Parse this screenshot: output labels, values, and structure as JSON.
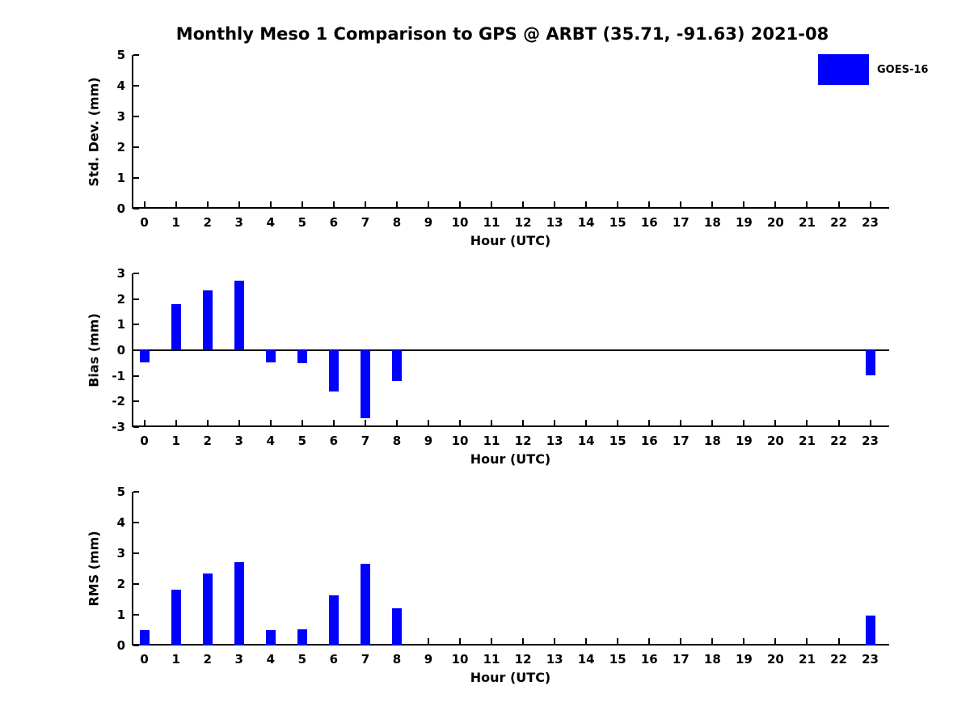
{
  "header": {
    "title": "Monthly Meso 1 Comparison to GPS @ ARBT (35.71, -91.63) 2021-08"
  },
  "legend": {
    "label": "GOES-16",
    "color": "#0000ff",
    "position": "top-right"
  },
  "chart_data": [
    {
      "type": "bar",
      "name": "std-dev-subplot",
      "ylabel": "Std. Dev. (mm)",
      "xlabel": "Hour (UTC)",
      "x": [
        0,
        1,
        2,
        3,
        4,
        5,
        6,
        7,
        8,
        9,
        10,
        11,
        12,
        13,
        14,
        15,
        16,
        17,
        18,
        19,
        20,
        21,
        22,
        23
      ],
      "xtick_labels": [
        "0",
        "1",
        "2",
        "3",
        "4",
        "5",
        "6",
        "7",
        "8",
        "9",
        "10",
        "11",
        "12",
        "13",
        "14",
        "15",
        "16",
        "17",
        "18",
        "19",
        "20",
        "21",
        "22",
        "23"
      ],
      "ylim": [
        0,
        5
      ],
      "yticks": [
        0,
        1,
        2,
        3,
        4,
        5
      ],
      "ytick_labels": [
        "0",
        "1",
        "2",
        "3",
        "4",
        "5"
      ],
      "zero_line": false,
      "grid": false,
      "series": [
        {
          "name": "GOES-16",
          "color": "#0000ff",
          "values": [
            null,
            null,
            null,
            null,
            null,
            null,
            null,
            null,
            null,
            null,
            null,
            null,
            null,
            null,
            null,
            null,
            null,
            null,
            null,
            null,
            null,
            null,
            null,
            null
          ]
        }
      ]
    },
    {
      "type": "bar",
      "name": "bias-subplot",
      "ylabel": "Bias (mm)",
      "xlabel": "Hour (UTC)",
      "x": [
        0,
        1,
        2,
        3,
        4,
        5,
        6,
        7,
        8,
        9,
        10,
        11,
        12,
        13,
        14,
        15,
        16,
        17,
        18,
        19,
        20,
        21,
        22,
        23
      ],
      "xtick_labels": [
        "0",
        "1",
        "2",
        "3",
        "4",
        "5",
        "6",
        "7",
        "8",
        "9",
        "10",
        "11",
        "12",
        "13",
        "14",
        "15",
        "16",
        "17",
        "18",
        "19",
        "20",
        "21",
        "22",
        "23"
      ],
      "ylim": [
        -3,
        3
      ],
      "yticks": [
        -3,
        -2,
        -1,
        0,
        1,
        2,
        3
      ],
      "ytick_labels": [
        "-3",
        "-2",
        "-1",
        "0",
        "1",
        "2",
        "3"
      ],
      "zero_line": true,
      "grid": false,
      "series": [
        {
          "name": "GOES-16",
          "color": "#0000ff",
          "values": [
            -0.48,
            1.81,
            2.35,
            2.72,
            -0.48,
            -0.52,
            -1.62,
            -2.66,
            -1.21,
            null,
            null,
            null,
            null,
            null,
            null,
            null,
            null,
            null,
            null,
            null,
            null,
            null,
            null,
            -0.99
          ]
        }
      ]
    },
    {
      "type": "bar",
      "name": "rms-subplot",
      "ylabel": "RMS (mm)",
      "xlabel": "Hour (UTC)",
      "x": [
        0,
        1,
        2,
        3,
        4,
        5,
        6,
        7,
        8,
        9,
        10,
        11,
        12,
        13,
        14,
        15,
        16,
        17,
        18,
        19,
        20,
        21,
        22,
        23
      ],
      "xtick_labels": [
        "0",
        "1",
        "2",
        "3",
        "4",
        "5",
        "6",
        "7",
        "8",
        "9",
        "10",
        "11",
        "12",
        "13",
        "14",
        "15",
        "16",
        "17",
        "18",
        "19",
        "20",
        "21",
        "22",
        "23"
      ],
      "ylim": [
        0,
        5
      ],
      "yticks": [
        0,
        1,
        2,
        3,
        4,
        5
      ],
      "ytick_labels": [
        "0",
        "1",
        "2",
        "3",
        "4",
        "5"
      ],
      "zero_line": false,
      "grid": false,
      "series": [
        {
          "name": "GOES-16",
          "color": "#0000ff",
          "values": [
            0.49,
            1.81,
            2.34,
            2.72,
            0.49,
            0.52,
            1.62,
            2.65,
            1.21,
            null,
            null,
            null,
            null,
            null,
            null,
            null,
            null,
            null,
            null,
            null,
            null,
            null,
            null,
            0.98
          ]
        }
      ]
    }
  ]
}
